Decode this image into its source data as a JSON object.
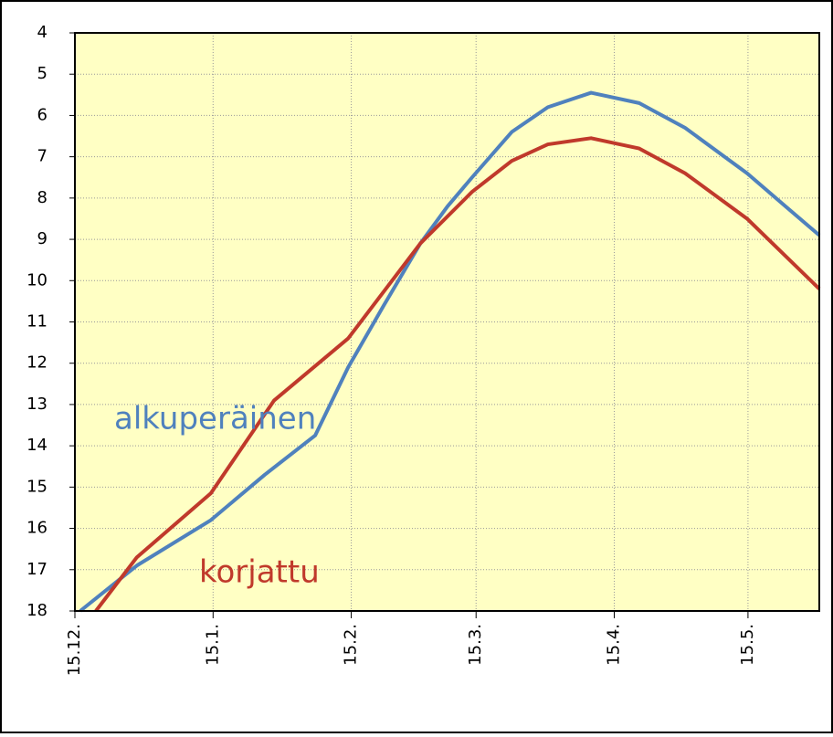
{
  "chart_data": {
    "type": "line",
    "xticks": [
      {
        "value": 0,
        "label": "15.12."
      },
      {
        "value": 31,
        "label": "15.1."
      },
      {
        "value": 62,
        "label": "15.2."
      },
      {
        "value": 90,
        "label": "15.3."
      },
      {
        "value": 121,
        "label": "15.4."
      },
      {
        "value": 151,
        "label": "15.5."
      }
    ],
    "xlim": [
      0,
      167
    ],
    "ylim": [
      18,
      4
    ],
    "yticks": [
      4,
      5,
      6,
      7,
      8,
      9,
      10,
      11,
      12,
      13,
      14,
      15,
      16,
      17,
      18
    ],
    "grid": true,
    "series": [
      {
        "name": "alkuperäinen",
        "color": "#4f81bd",
        "x": [
          1.2,
          13.9,
          30.5,
          42.6,
          53.9,
          61.3,
          69.3,
          77.5,
          83.6,
          89.1,
          98.0,
          106.1,
          115.8,
          126.6,
          136.9,
          150.8,
          159.4,
          167
        ],
        "values": [
          18.0,
          16.9,
          15.8,
          14.7,
          13.75,
          12.1,
          10.6,
          9.1,
          8.2,
          7.5,
          6.4,
          5.8,
          5.45,
          5.7,
          6.3,
          7.4,
          8.2,
          8.9
        ]
      },
      {
        "name": "korjattu",
        "color": "#c0392b",
        "x": [
          4.7,
          13.9,
          30.5,
          44.7,
          61.3,
          77.5,
          89.1,
          98.0,
          106.1,
          115.8,
          126.6,
          136.9,
          150.8,
          167
        ],
        "values": [
          18.0,
          16.7,
          15.15,
          12.9,
          11.4,
          9.1,
          7.85,
          7.1,
          6.7,
          6.55,
          6.8,
          7.4,
          8.5,
          10.2
        ]
      }
    ]
  }
}
